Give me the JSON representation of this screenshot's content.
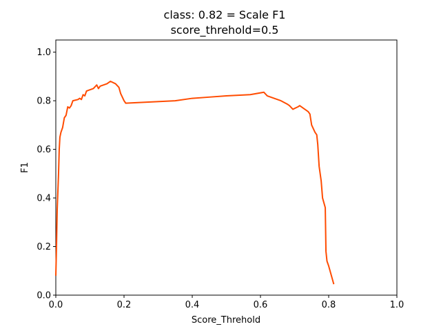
{
  "chart_data": {
    "type": "line",
    "title_line1": "class: 0.82 = Scale F1",
    "title_line2": "score_threhold=0.5",
    "xlabel": "Score_Threhold",
    "ylabel": "F1",
    "xlim": [
      0,
      1
    ],
    "ylim": [
      0,
      1.05
    ],
    "x_ticks": [
      0.0,
      0.2,
      0.4,
      0.6,
      0.8,
      1.0
    ],
    "x_tick_labels": [
      "0.0",
      "0.2",
      "0.4",
      "0.6",
      "0.8",
      "1.0"
    ],
    "y_ticks": [
      0.0,
      0.2,
      0.4,
      0.6,
      0.8,
      1.0
    ],
    "y_tick_labels": [
      "0.0",
      "0.2",
      "0.4",
      "0.6",
      "0.8",
      "1.0"
    ],
    "grid": false,
    "series": [
      {
        "color": "#ff4b00",
        "x": [
          0.0,
          0.002,
          0.004,
          0.008,
          0.01,
          0.012,
          0.015,
          0.02,
          0.025,
          0.03,
          0.035,
          0.04,
          0.045,
          0.05,
          0.065,
          0.07,
          0.075,
          0.08,
          0.085,
          0.09,
          0.11,
          0.12,
          0.125,
          0.13,
          0.15,
          0.16,
          0.175,
          0.185,
          0.19,
          0.195,
          0.2,
          0.205,
          0.35,
          0.4,
          0.45,
          0.5,
          0.57,
          0.61,
          0.62,
          0.66,
          0.68,
          0.685,
          0.695,
          0.71,
          0.715,
          0.74,
          0.745,
          0.75,
          0.76,
          0.765,
          0.768,
          0.772,
          0.778,
          0.782,
          0.79,
          0.792,
          0.795,
          0.8,
          0.815
        ],
        "y": [
          0.08,
          0.2,
          0.35,
          0.5,
          0.6,
          0.65,
          0.67,
          0.69,
          0.73,
          0.74,
          0.775,
          0.77,
          0.78,
          0.8,
          0.805,
          0.81,
          0.805,
          0.825,
          0.82,
          0.84,
          0.85,
          0.865,
          0.85,
          0.86,
          0.87,
          0.88,
          0.87,
          0.855,
          0.83,
          0.815,
          0.8,
          0.79,
          0.8,
          0.81,
          0.815,
          0.82,
          0.825,
          0.835,
          0.82,
          0.8,
          0.785,
          0.78,
          0.765,
          0.775,
          0.78,
          0.755,
          0.745,
          0.7,
          0.67,
          0.66,
          0.62,
          0.53,
          0.47,
          0.4,
          0.36,
          0.18,
          0.14,
          0.12,
          0.045
        ]
      }
    ]
  }
}
